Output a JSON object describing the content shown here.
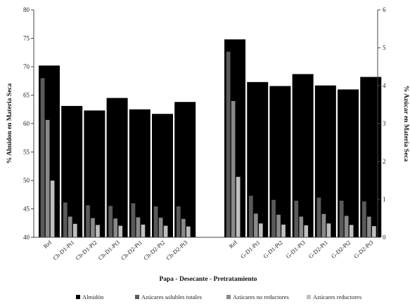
{
  "chart_data": {
    "type": "bar",
    "xlabel": "Papa - Desecante - Pretratamiento",
    "ylabel_left": "% Almidon en Materia Seca",
    "ylabel_right": "% Azúcar en Materia Seca",
    "ylim_left": [
      40,
      80
    ],
    "ylim_right": [
      0,
      6
    ],
    "yticks_left": [
      40,
      45,
      50,
      55,
      60,
      65,
      70,
      75,
      80
    ],
    "yticks_right": [
      0,
      1,
      2,
      3,
      4,
      5,
      6
    ],
    "legend_position": "bottom",
    "groups": [
      {
        "categories": [
          "Ref",
          "Ch-D1-Pt1",
          "Ch-D1-Pt2",
          "Ch-D1-Pt3",
          "Ch-D2-Pt1",
          "Ch-D2-Pt2",
          "Ch-D2-Pt3"
        ]
      },
      {
        "categories": [
          "Ref",
          "G-D1-Pt1",
          "G-D1-Pt2",
          "G-D1-Pt3",
          "G-D2-Pt1",
          "G-D2-Pt2",
          "G-D2-Pt3"
        ]
      }
    ],
    "series": [
      {
        "name": "Almidón",
        "axis": "left",
        "color": "#000000",
        "values": [
          70.2,
          63.1,
          62.3,
          64.5,
          62.5,
          61.7,
          63.8,
          74.8,
          67.3,
          66.6,
          68.7,
          66.7,
          66.0,
          68.2
        ]
      },
      {
        "name": "Azúcares solubles totales",
        "axis": "right",
        "color": "#5a5a5a",
        "values": [
          4.2,
          0.92,
          0.85,
          0.83,
          0.9,
          0.82,
          0.82,
          4.9,
          1.1,
          0.99,
          0.97,
          1.05,
          0.97,
          0.95
        ]
      },
      {
        "name": "Azúcares no reductores",
        "axis": "right",
        "color": "#8a8a8a",
        "values": [
          3.1,
          0.55,
          0.51,
          0.5,
          0.53,
          0.52,
          0.49,
          3.6,
          0.63,
          0.6,
          0.55,
          0.62,
          0.57,
          0.55
        ]
      },
      {
        "name": "Azúcares reductores",
        "axis": "right",
        "color": "#c0c0c0",
        "values": [
          1.5,
          0.36,
          0.33,
          0.31,
          0.34,
          0.31,
          0.29,
          1.6,
          0.37,
          0.34,
          0.32,
          0.37,
          0.33,
          0.3
        ]
      }
    ]
  }
}
